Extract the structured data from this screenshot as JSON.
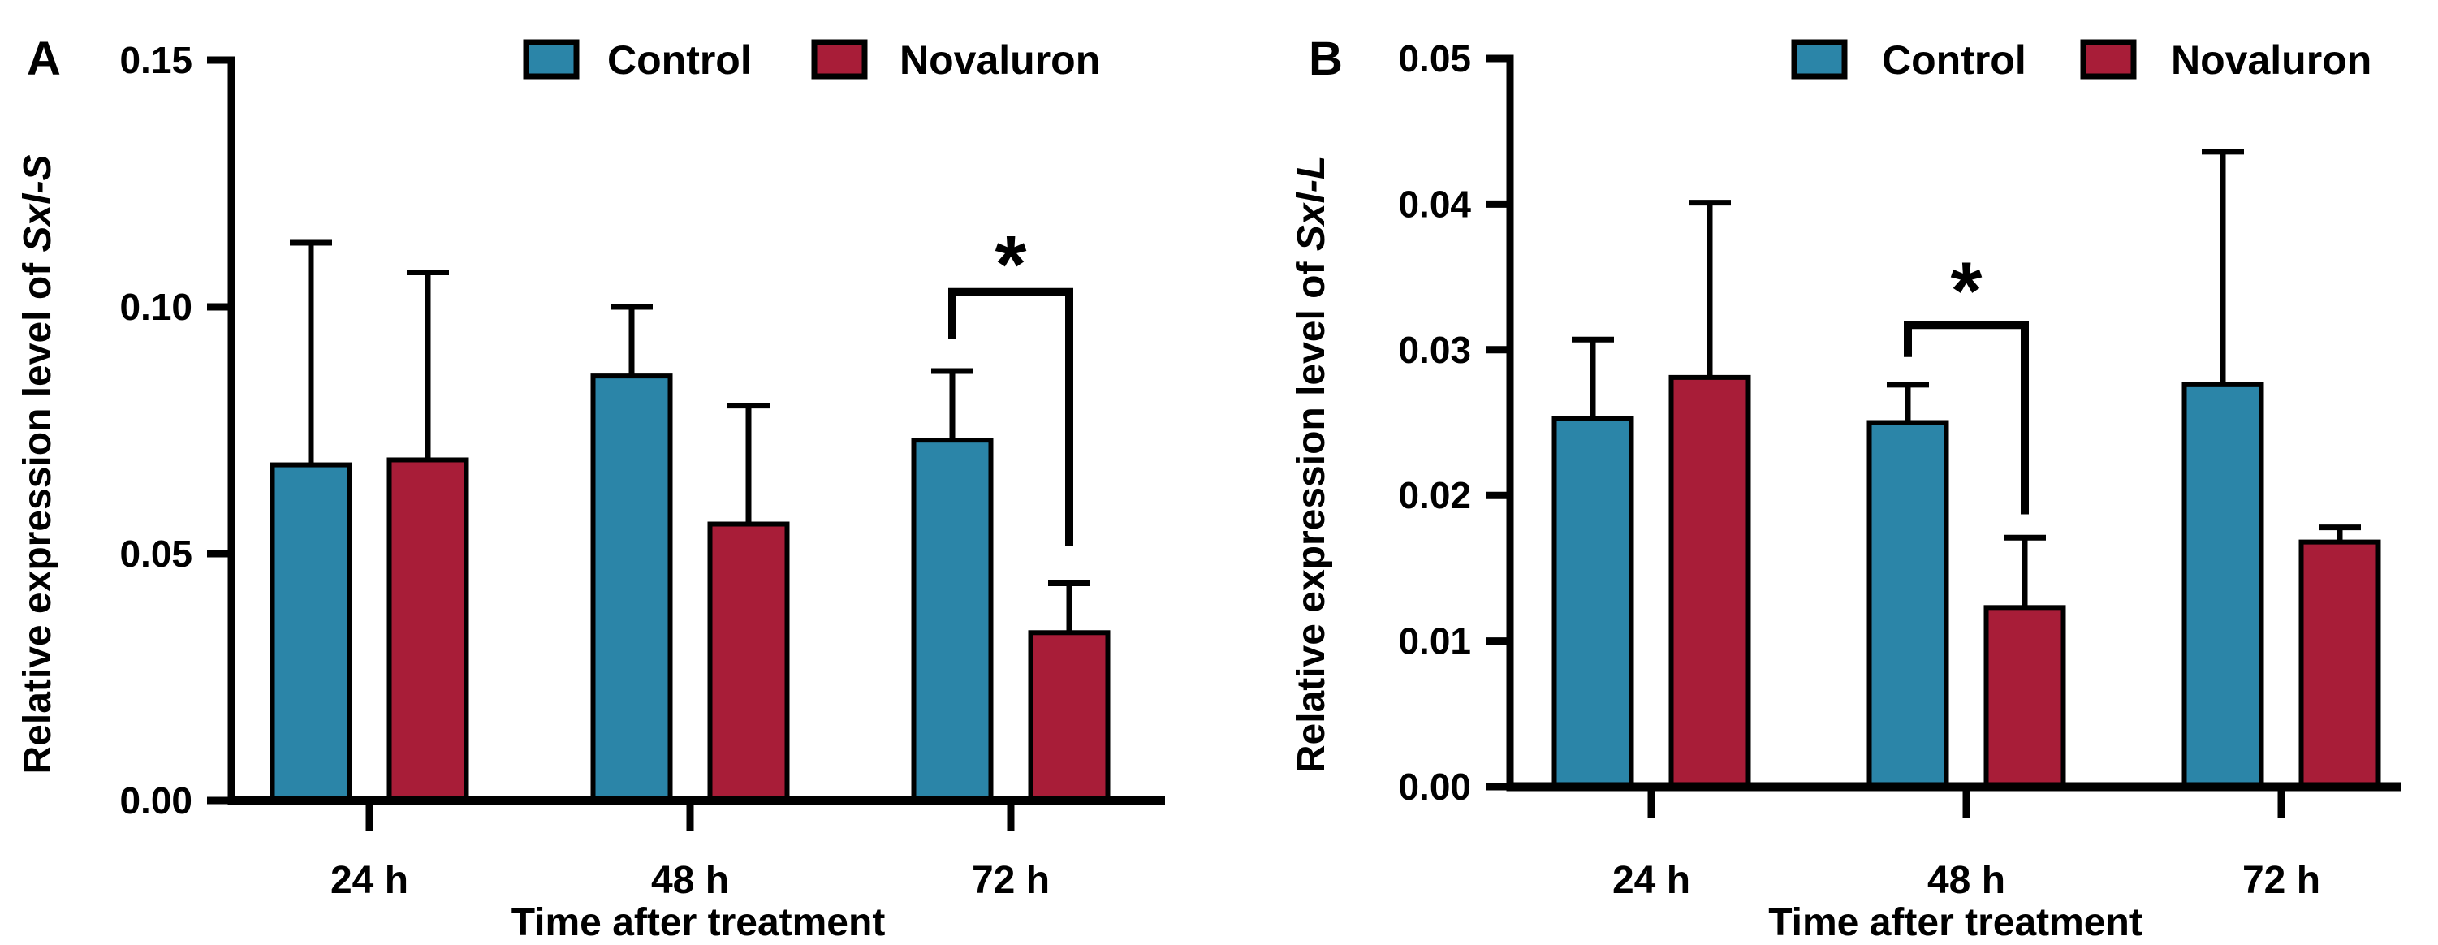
{
  "figure": {
    "background": "#FFFFFF",
    "axis_color": "#000000",
    "control_color": "#2B85A8",
    "novaluron_color": "#A81D38"
  },
  "chart_data": [
    {
      "type": "bar",
      "panel_label": "A",
      "ylabel_prefix": "Relative expression level of ",
      "ylabel_gene": "Sxl-S",
      "xlabel": "Time after treatment",
      "categories": [
        "24 h",
        "48 h",
        "72 h"
      ],
      "ylim": [
        0,
        0.15
      ],
      "ytick_values": [
        0,
        0.05,
        0.1,
        0.15
      ],
      "ytick_labels": [
        "0.00",
        "0.05",
        "0.10",
        "0.15"
      ],
      "grid": "off",
      "legend_position": "top-center",
      "series": [
        {
          "name": "Control",
          "color": "#2B85A8",
          "values": [
            0.068,
            0.086,
            0.073
          ],
          "error_top": [
            0.113,
            0.1,
            0.087
          ]
        },
        {
          "name": "Novaluron",
          "color": "#A81D38",
          "values": [
            0.069,
            0.056,
            0.034
          ],
          "error_top": [
            0.107,
            0.08,
            0.044
          ]
        }
      ],
      "significance": {
        "group_index": 2,
        "label": "*",
        "bracket_top_value": 0.103,
        "left_drop_to_value": 0.0935,
        "right_drop_to_value": 0.0515,
        "label_value": 0.112
      }
    },
    {
      "type": "bar",
      "panel_label": "B",
      "ylabel_prefix": "Relative expression level of ",
      "ylabel_gene": "Sxl-L",
      "xlabel": "Time after treatment",
      "categories": [
        "24 h",
        "48 h",
        "72 h"
      ],
      "ylim": [
        0,
        0.05
      ],
      "ytick_values": [
        0,
        0.01,
        0.02,
        0.03,
        0.04,
        0.05
      ],
      "ytick_labels": [
        "0.00",
        "0.01",
        "0.02",
        "0.03",
        "0.04",
        "0.05"
      ],
      "grid": "off",
      "legend_position": "top-center",
      "series": [
        {
          "name": "Control",
          "color": "#2B85A8",
          "values": [
            0.0253,
            0.025,
            0.0276
          ],
          "error_top": [
            0.0307,
            0.0276,
            0.0436
          ]
        },
        {
          "name": "Novaluron",
          "color": "#A81D38",
          "values": [
            0.0281,
            0.0123,
            0.0168
          ],
          "error_top": [
            0.0401,
            0.0171,
            0.0178
          ]
        }
      ],
      "significance": {
        "group_index": 1,
        "label": "*",
        "bracket_top_value": 0.0317,
        "left_drop_to_value": 0.0295,
        "right_drop_to_value": 0.0187,
        "label_value": 0.0352
      }
    }
  ]
}
